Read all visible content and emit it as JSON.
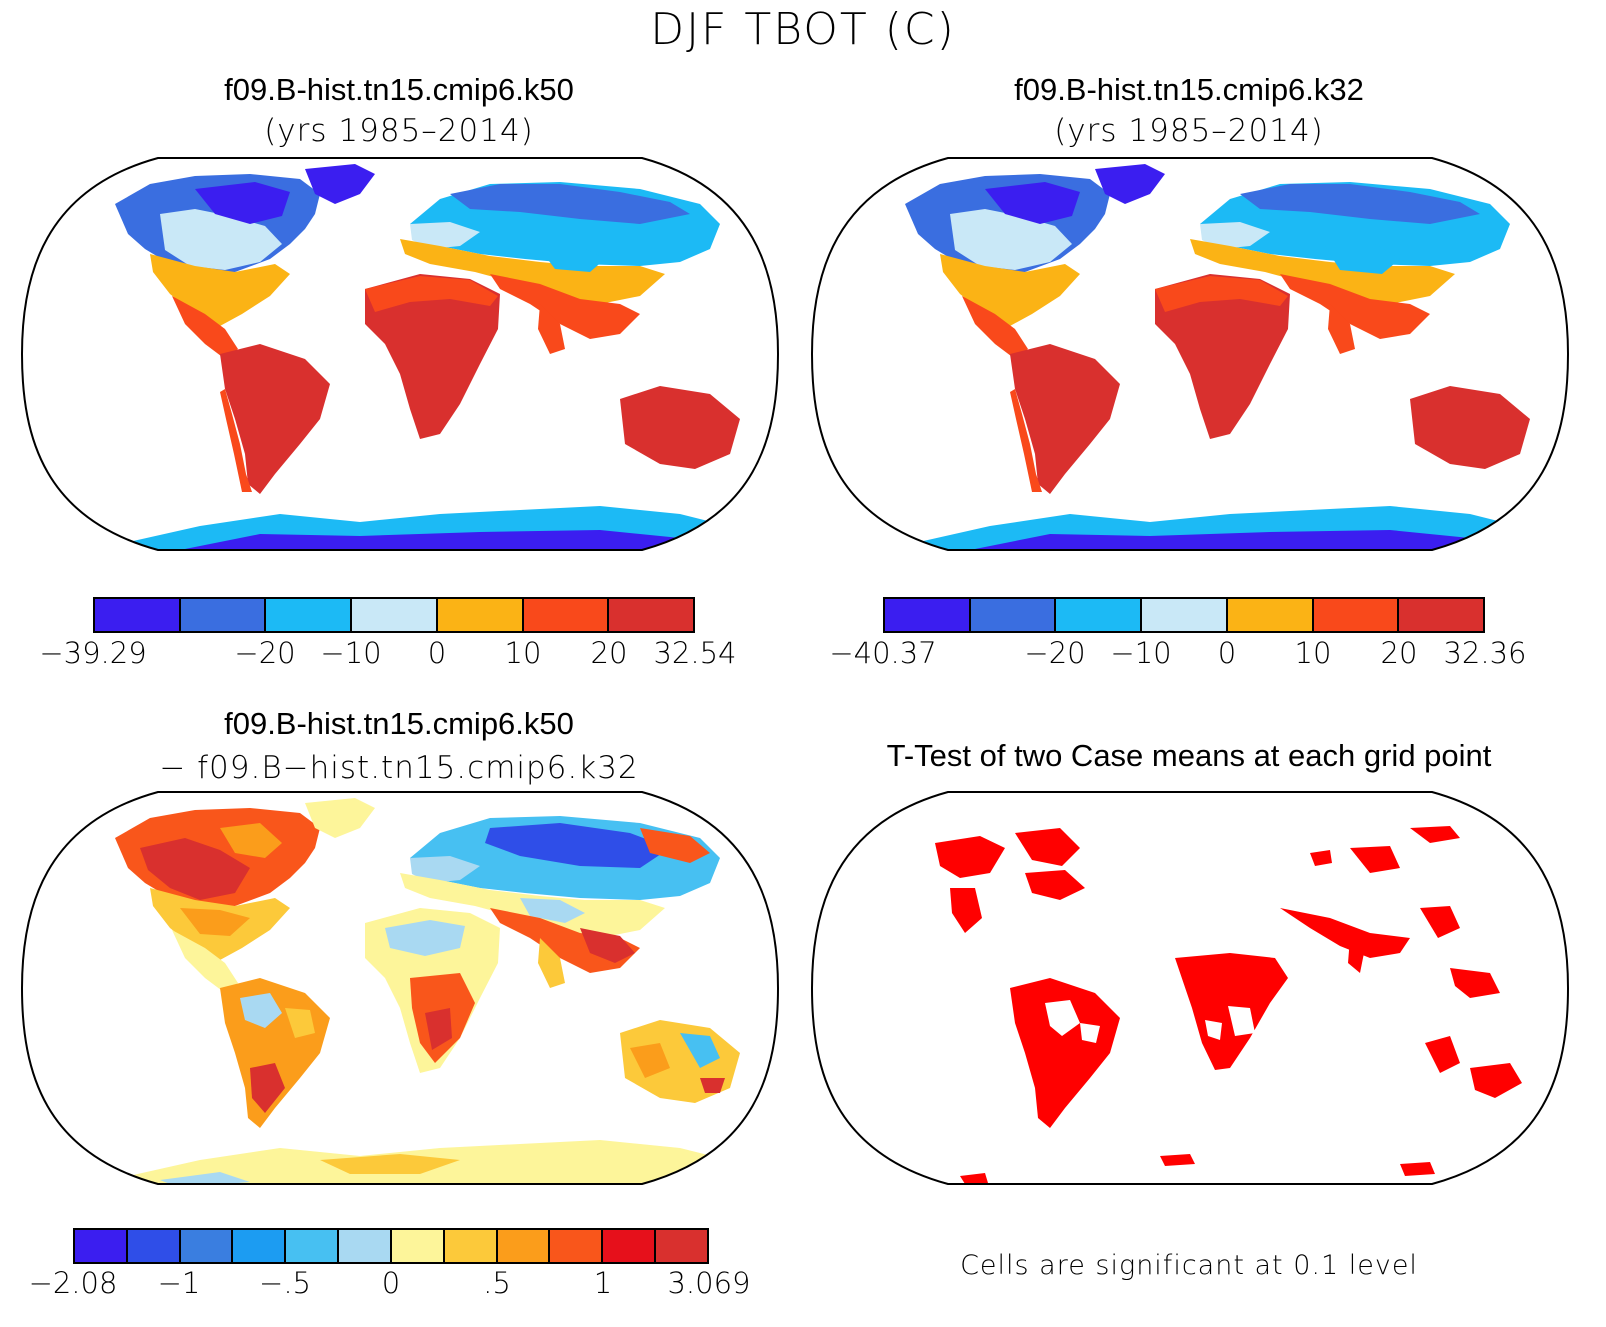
{
  "figure": {
    "title": "DJF TBOT (C)"
  },
  "panels": [
    {
      "id": "k50",
      "title": "f09.B-hist.tn15.cmip6.k50",
      "subtitle": "(yrs 1985–2014)",
      "colorbar": {
        "colors": [
          "#3b1ef0",
          "#3a6ee0",
          "#1cbaf5",
          "#c9e8f7",
          "#fbb315",
          "#f9491b",
          "#d9302e"
        ],
        "tick_labels": [
          "−39.29",
          "−20",
          "−10",
          "0",
          "10",
          "20",
          "32.54"
        ],
        "tick_boundary_index": [
          0,
          2,
          3,
          4,
          5,
          6,
          7
        ]
      }
    },
    {
      "id": "k32",
      "title": "f09.B-hist.tn15.cmip6.k32",
      "subtitle": "(yrs 1985–2014)",
      "colorbar": {
        "colors": [
          "#3b1ef0",
          "#3a6ee0",
          "#1cbaf5",
          "#c9e8f7",
          "#fbb315",
          "#f9491b",
          "#d9302e"
        ],
        "tick_labels": [
          "−40.37",
          "−20",
          "−10",
          "0",
          "10",
          "20",
          "32.36"
        ],
        "tick_boundary_index": [
          0,
          2,
          3,
          4,
          5,
          6,
          7
        ]
      }
    },
    {
      "id": "diff",
      "title": "f09.B-hist.tn15.cmip6.k50",
      "subtitle": "− f09.B−hist.tn15.cmip6.k32",
      "colorbar": {
        "colors": [
          "#3b1ef0",
          "#2f4ee8",
          "#3a7ee0",
          "#1c9cf2",
          "#47c0f2",
          "#a9d9f2",
          "#fdf59a",
          "#fcc93a",
          "#fb9d1b",
          "#f9561b",
          "#e6101b",
          "#d9302e"
        ],
        "tick_labels": [
          "−2.08",
          "−1",
          "−.5",
          "0",
          ".5",
          "1",
          "3.069"
        ],
        "tick_boundary_index": [
          0,
          2,
          4,
          6,
          8,
          10,
          12
        ]
      }
    },
    {
      "id": "ttest",
      "title": "T-Test of two Case means at each grid point",
      "note": "Cells are significant at 0.1 level",
      "significance_color": "#ff0000"
    }
  ]
}
